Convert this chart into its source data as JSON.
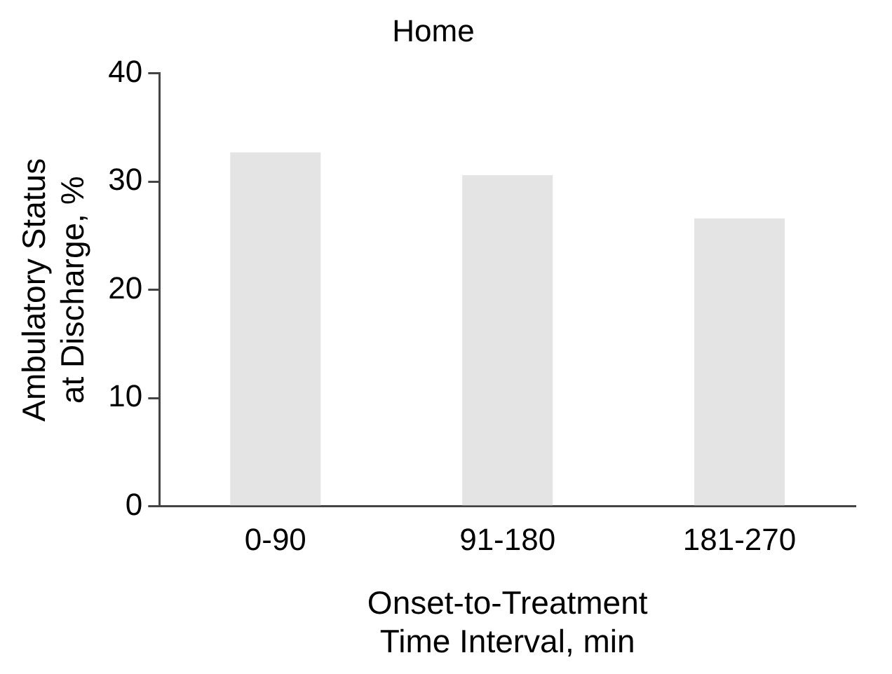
{
  "chart_data": {
    "type": "bar",
    "title": "Home",
    "categories": [
      "0-90",
      "91-180",
      "181-270"
    ],
    "values": [
      32.7,
      30.6,
      26.6
    ],
    "color": "#e4e4e4",
    "xlabel": "Onset-to-Treatment\nTime Interval, min",
    "ylabel": "Ambulatory Status\nat Discharge, %",
    "ylim": [
      0,
      40
    ],
    "yticks": [
      0,
      10,
      20,
      30,
      40
    ],
    "grid": false,
    "legend": false
  }
}
